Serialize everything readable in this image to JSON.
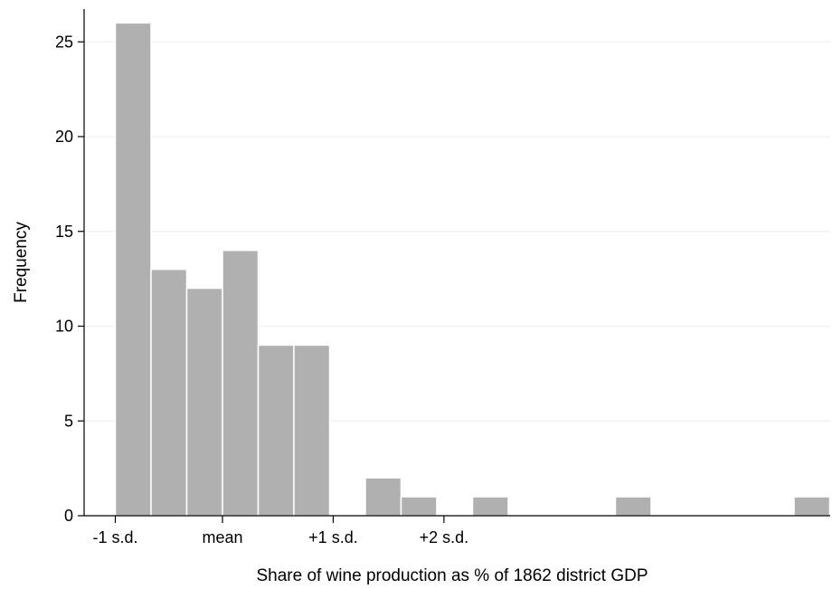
{
  "chart_data": {
    "type": "bar",
    "title": "",
    "xlabel": "Share of wine production as % of 1862 district GDP",
    "ylabel": "Frequency",
    "ylim": [
      0,
      26.5
    ],
    "grid": true,
    "legend": "none",
    "bins": [
      {
        "index": 0,
        "frequency": 26
      },
      {
        "index": 1,
        "frequency": 13
      },
      {
        "index": 2,
        "frequency": 12
      },
      {
        "index": 3,
        "frequency": 14
      },
      {
        "index": 4,
        "frequency": 9
      },
      {
        "index": 5,
        "frequency": 9
      },
      {
        "index": 6,
        "frequency": 0
      },
      {
        "index": 7,
        "frequency": 2
      },
      {
        "index": 8,
        "frequency": 1
      },
      {
        "index": 9,
        "frequency": 0
      },
      {
        "index": 10,
        "frequency": 1
      },
      {
        "index": 11,
        "frequency": 0
      },
      {
        "index": 12,
        "frequency": 0
      },
      {
        "index": 13,
        "frequency": 0
      },
      {
        "index": 14,
        "frequency": 1
      },
      {
        "index": 15,
        "frequency": 0
      },
      {
        "index": 16,
        "frequency": 0
      },
      {
        "index": 17,
        "frequency": 0
      },
      {
        "index": 18,
        "frequency": 0
      },
      {
        "index": 19,
        "frequency": 1
      }
    ],
    "y_ticks": [
      0,
      5,
      10,
      15,
      20,
      25
    ],
    "x_ticks": [
      {
        "label": "-1 s.d.",
        "bin_position": 0.0
      },
      {
        "label": "mean",
        "bin_position": 3.0
      },
      {
        "label": "+1 s.d.",
        "bin_position": 6.1
      },
      {
        "label": "+2 s.d.",
        "bin_position": 9.2
      }
    ],
    "colors": {
      "bar": "#b0b0b0",
      "bar_edge": "#ffffff",
      "grid": "#eaf2f3",
      "axis": "#000000"
    }
  }
}
